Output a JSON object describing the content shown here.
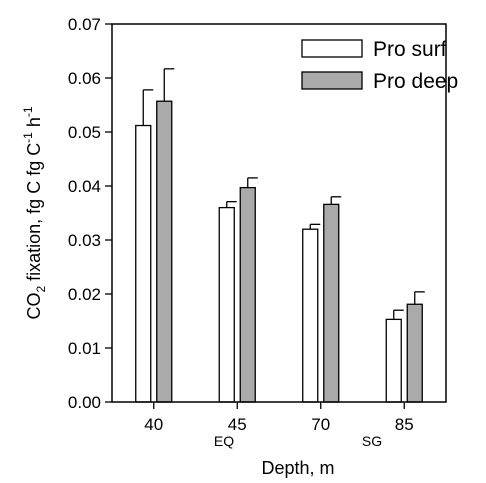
{
  "chart_data": {
    "type": "bar",
    "categories": [
      "40",
      "45",
      "70",
      "85"
    ],
    "series": [
      {
        "name": "Pro surf",
        "values": [
          0.0512,
          0.036,
          0.032,
          0.0153
        ],
        "errors": [
          0.0066,
          0.0011,
          0.0009,
          0.0017
        ],
        "color": "#ffffff"
      },
      {
        "name": "Pro deep",
        "values": [
          0.0557,
          0.0397,
          0.0366,
          0.0181
        ],
        "errors": [
          0.006,
          0.0018,
          0.0014,
          0.0023
        ],
        "color": "#aaaaaa"
      }
    ],
    "ylim": [
      0,
      0.07
    ],
    "yticks": [
      "0.00",
      "0.01",
      "0.02",
      "0.03",
      "0.04",
      "0.05",
      "0.06",
      "0.07"
    ],
    "xlabel": "Depth, m",
    "ylabel": {
      "p1": "CO",
      "p1_sub": "2",
      "p2": " fixation, fg C fg C",
      "p2_sup": "-1",
      "p3": " h",
      "p3_sup": "-1"
    },
    "annotations": [
      "EQ",
      "SG"
    ],
    "legend_position": "top-right",
    "grid": false
  }
}
